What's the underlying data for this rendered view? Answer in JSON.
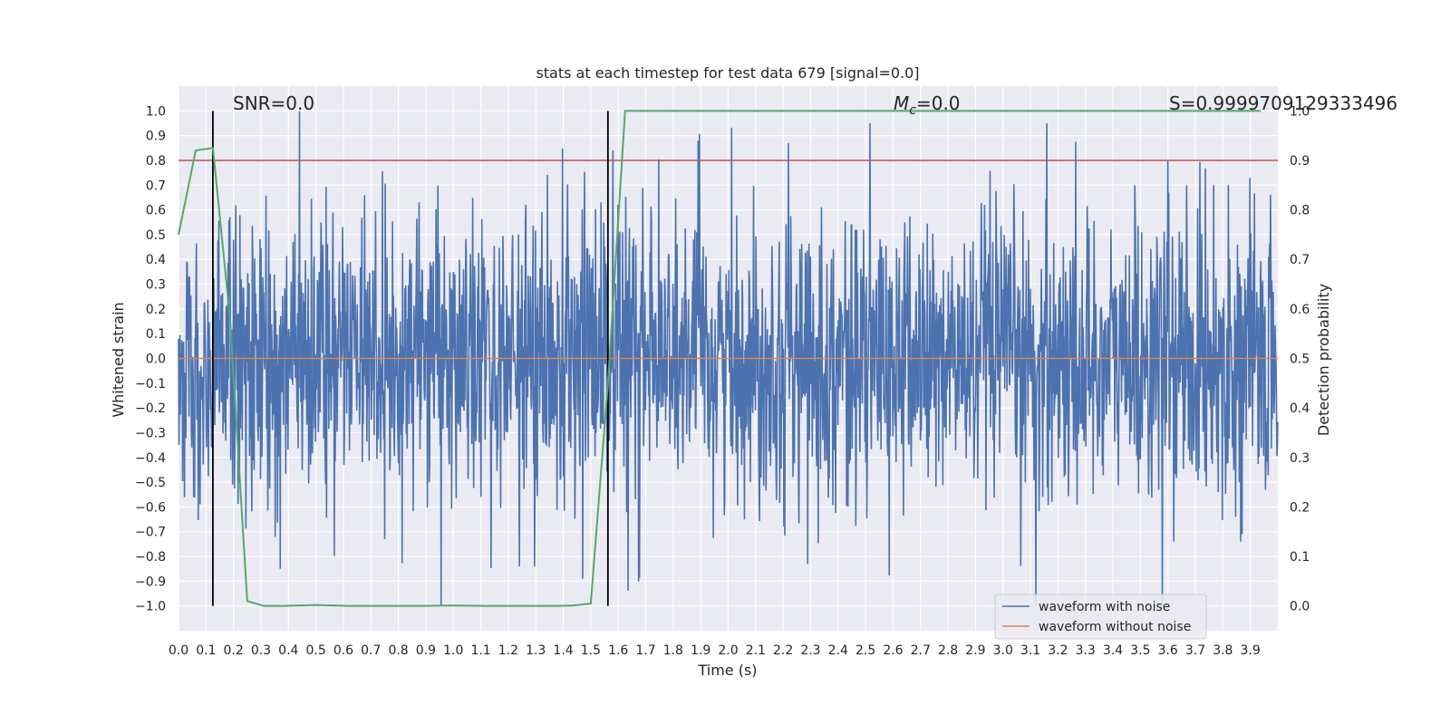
{
  "chart_data": {
    "type": "line",
    "title": "stats at each timestep for test data 679 [signal=0.0]",
    "xlabel": "Time (s)",
    "ylabel": "Whitened strain",
    "ylabel_right": "Detection probability",
    "xlim": [
      0.0,
      4.0
    ],
    "ylim": [
      -1.1,
      1.1
    ],
    "ylim_right": [
      -0.05,
      1.05
    ],
    "x_ticks": [
      "0.0",
      "0.1",
      "0.2",
      "0.3",
      "0.4",
      "0.5",
      "0.6",
      "0.7",
      "0.8",
      "0.9",
      "1.0",
      "1.1",
      "1.2",
      "1.3",
      "1.4",
      "1.5",
      "1.6",
      "1.7",
      "1.8",
      "1.9",
      "2.0",
      "2.1",
      "2.2",
      "2.3",
      "2.4",
      "2.5",
      "2.6",
      "2.7",
      "2.8",
      "2.9",
      "3.0",
      "3.1",
      "3.2",
      "3.3",
      "3.4",
      "3.5",
      "3.6",
      "3.7",
      "3.8",
      "3.9"
    ],
    "y_ticks": [
      "1.0",
      "0.9",
      "0.8",
      "0.7",
      "0.6",
      "0.5",
      "0.4",
      "0.3",
      "0.2",
      "0.1",
      "0.0",
      "−0.1",
      "−0.2",
      "−0.3",
      "−0.4",
      "−0.5",
      "−0.6",
      "−0.7",
      "−0.8",
      "−0.9",
      "−1.0"
    ],
    "y_ticks_right": [
      "1.0",
      "0.9",
      "0.8",
      "0.7",
      "0.6",
      "0.5",
      "0.4",
      "0.3",
      "0.2",
      "0.1",
      "0.0"
    ],
    "grid": true,
    "annotations": {
      "snr": "SNR=0.0",
      "mc_symbol": "M",
      "mc_sub": "c",
      "mc_value": "=0.0",
      "s": "S=0.9999709129333496"
    },
    "legend": {
      "position": "lower-right",
      "entries": [
        {
          "label": "waveform with noise",
          "color": "#4c72b0"
        },
        {
          "label": "waveform without noise",
          "color": "#dd8452"
        }
      ]
    },
    "series": [
      {
        "name": "waveform with noise",
        "color": "#4c72b0",
        "kind": "noise",
        "amplitude_typical": 0.45,
        "max": 1.0,
        "min": -1.0
      },
      {
        "name": "waveform without noise",
        "color": "#dd8452",
        "x": [
          0.0,
          4.0
        ],
        "y": [
          0.0,
          0.0
        ]
      },
      {
        "color": "#55a868",
        "axis": "right",
        "x": [
          0.0,
          0.0625,
          0.125,
          0.1875,
          0.25,
          0.3125,
          0.375,
          0.5,
          0.625,
          0.75,
          0.875,
          1.0,
          1.125,
          1.25,
          1.375,
          1.4375,
          1.5,
          1.5625,
          1.625,
          3.9375
        ],
        "y": [
          0.75,
          0.92,
          0.925,
          0.58,
          0.01,
          0.0,
          0.0,
          0.002,
          0.0,
          0.0,
          0.0,
          0.001,
          0.0,
          0.0,
          0.0,
          0.001,
          0.005,
          0.45,
          1.0,
          1.0
        ]
      },
      {
        "color": "#c44e52",
        "axis": "right",
        "x": [
          0.0,
          4.0
        ],
        "y": [
          0.9,
          0.9
        ]
      }
    ],
    "vlines": [
      {
        "x": 0.125,
        "color": "#000000",
        "ymin": -1.0,
        "ymax": 1.0
      },
      {
        "x": 1.5625,
        "color": "#000000",
        "ymin": -1.0,
        "ymax": 1.0
      }
    ],
    "spikes": [
      {
        "x": 0.44,
        "y": 1.0
      },
      {
        "x": 1.24,
        "y": 0.87
      },
      {
        "x": 1.58,
        "y": 0.84
      },
      {
        "x": 1.89,
        "y": 0.88
      },
      {
        "x": 2.22,
        "y": 0.87
      },
      {
        "x": 3.16,
        "y": 0.95
      },
      {
        "x": 3.6,
        "y": 0.8
      },
      {
        "x": 0.37,
        "y": -0.85
      },
      {
        "x": 1.47,
        "y": -0.89
      },
      {
        "x": 2.29,
        "y": -0.83
      },
      {
        "x": 3.12,
        "y": -1.0
      },
      {
        "x": 3.58,
        "y": -1.0
      },
      {
        "x": 0.75,
        "y": -0.73
      },
      {
        "x": 1.24,
        "y": -0.84
      }
    ]
  }
}
